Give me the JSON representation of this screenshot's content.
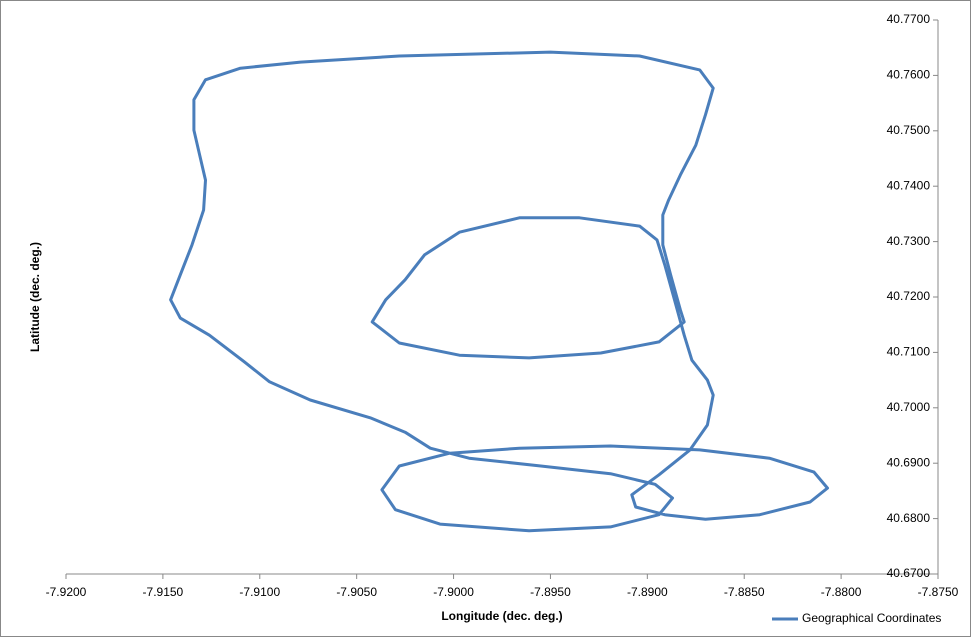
{
  "chart_data": {
    "type": "line",
    "x_label": "Longitude (dec. deg.)",
    "y_label": "Latitude (dec. deg.)",
    "xlim": [
      -7.92,
      -7.875
    ],
    "ylim": [
      40.67,
      40.77
    ],
    "xticks": [
      {
        "value": -7.92,
        "label": "-7.9200"
      },
      {
        "value": -7.915,
        "label": "-7.9150"
      },
      {
        "value": -7.91,
        "label": "-7.9100"
      },
      {
        "value": -7.905,
        "label": "-7.9050"
      },
      {
        "value": -7.9,
        "label": "-7.9000"
      },
      {
        "value": -7.895,
        "label": "-7.8950"
      },
      {
        "value": -7.89,
        "label": "-7.8900"
      },
      {
        "value": -7.885,
        "label": "-7.8850"
      },
      {
        "value": -7.88,
        "label": "-7.8800"
      },
      {
        "value": -7.875,
        "label": "-7.8750"
      }
    ],
    "yticks": [
      {
        "value": 40.67,
        "label": "40.6700"
      },
      {
        "value": 40.68,
        "label": "40.6800"
      },
      {
        "value": 40.69,
        "label": "40.6900"
      },
      {
        "value": 40.7,
        "label": "40.7000"
      },
      {
        "value": 40.71,
        "label": "40.7100"
      },
      {
        "value": 40.72,
        "label": "40.7200"
      },
      {
        "value": 40.73,
        "label": "40.7300"
      },
      {
        "value": 40.74,
        "label": "40.7400"
      },
      {
        "value": 40.75,
        "label": "40.7500"
      },
      {
        "value": 40.76,
        "label": "40.7600"
      },
      {
        "value": 40.77,
        "label": "40.7700"
      }
    ],
    "legend": "bottom-right",
    "series": [
      {
        "name": "Geographical Coordinates",
        "color": "#4a7ebb",
        "x": [
          -7.9128,
          -7.911,
          -7.9079,
          -7.9028,
          -7.895,
          -7.8904,
          -7.8873,
          -7.8866,
          -7.887,
          -7.8875,
          -7.8883,
          -7.8889,
          -7.8892,
          -7.8892,
          -7.8888,
          -7.8883,
          -7.8881,
          -7.8894,
          -7.8924,
          -7.8961,
          -7.8997,
          -7.9028,
          -7.9042,
          -7.9035,
          -7.9025,
          -7.9015,
          -7.8997,
          -7.8966,
          -7.8935,
          -7.8904,
          -7.8895,
          -7.8891,
          -7.8886,
          -7.8881,
          -7.8877,
          -7.8869,
          -7.8866,
          -7.8869,
          -7.8878,
          -7.8894,
          -7.8908,
          -7.8906,
          -7.8891,
          -7.887,
          -7.8842,
          -7.8816,
          -7.8807,
          -7.8814,
          -7.8837,
          -7.8873,
          -7.8919,
          -7.8966,
          -7.9002,
          -7.9028,
          -7.9037,
          -7.903,
          -7.9007,
          -7.8961,
          -7.8919,
          -7.8894,
          -7.8887,
          -7.8896,
          -7.8919,
          -7.8955,
          -7.8992,
          -7.9012,
          -7.9025,
          -7.9043,
          -7.9074,
          -7.9095,
          -7.9108,
          -7.9126,
          -7.9141,
          -7.9146,
          -7.9141,
          -7.9135,
          -7.9129,
          -7.9128,
          -7.9131,
          -7.9134,
          -7.9134,
          -7.9128
        ],
        "values": [
          40.7592,
          40.7613,
          40.7624,
          40.7635,
          40.7642,
          40.7635,
          40.761,
          40.7577,
          40.7529,
          40.7474,
          40.742,
          40.7375,
          40.7348,
          40.7294,
          40.724,
          40.7177,
          40.7155,
          40.7119,
          40.7099,
          40.709,
          40.7095,
          40.7117,
          40.7155,
          40.7195,
          40.7231,
          40.7276,
          40.7317,
          40.7343,
          40.7343,
          40.7328,
          40.7303,
          40.7258,
          40.7195,
          40.7131,
          40.7086,
          40.705,
          40.7023,
          40.6969,
          40.6924,
          40.6879,
          40.6843,
          40.6821,
          40.6807,
          40.6799,
          40.6807,
          40.683,
          40.6855,
          40.6884,
          40.6909,
          40.6924,
          40.6931,
          40.6927,
          40.6918,
          40.6895,
          40.6852,
          40.6816,
          40.679,
          40.6778,
          40.6785,
          40.6807,
          40.6837,
          40.6862,
          40.6881,
          40.6895,
          40.6909,
          40.6927,
          40.6956,
          40.6982,
          40.7014,
          40.7047,
          40.7083,
          40.7131,
          40.7162,
          40.7195,
          40.724,
          40.7294,
          40.7357,
          40.7411,
          40.7456,
          40.7501,
          40.7556,
          40.7592
        ]
      }
    ]
  }
}
